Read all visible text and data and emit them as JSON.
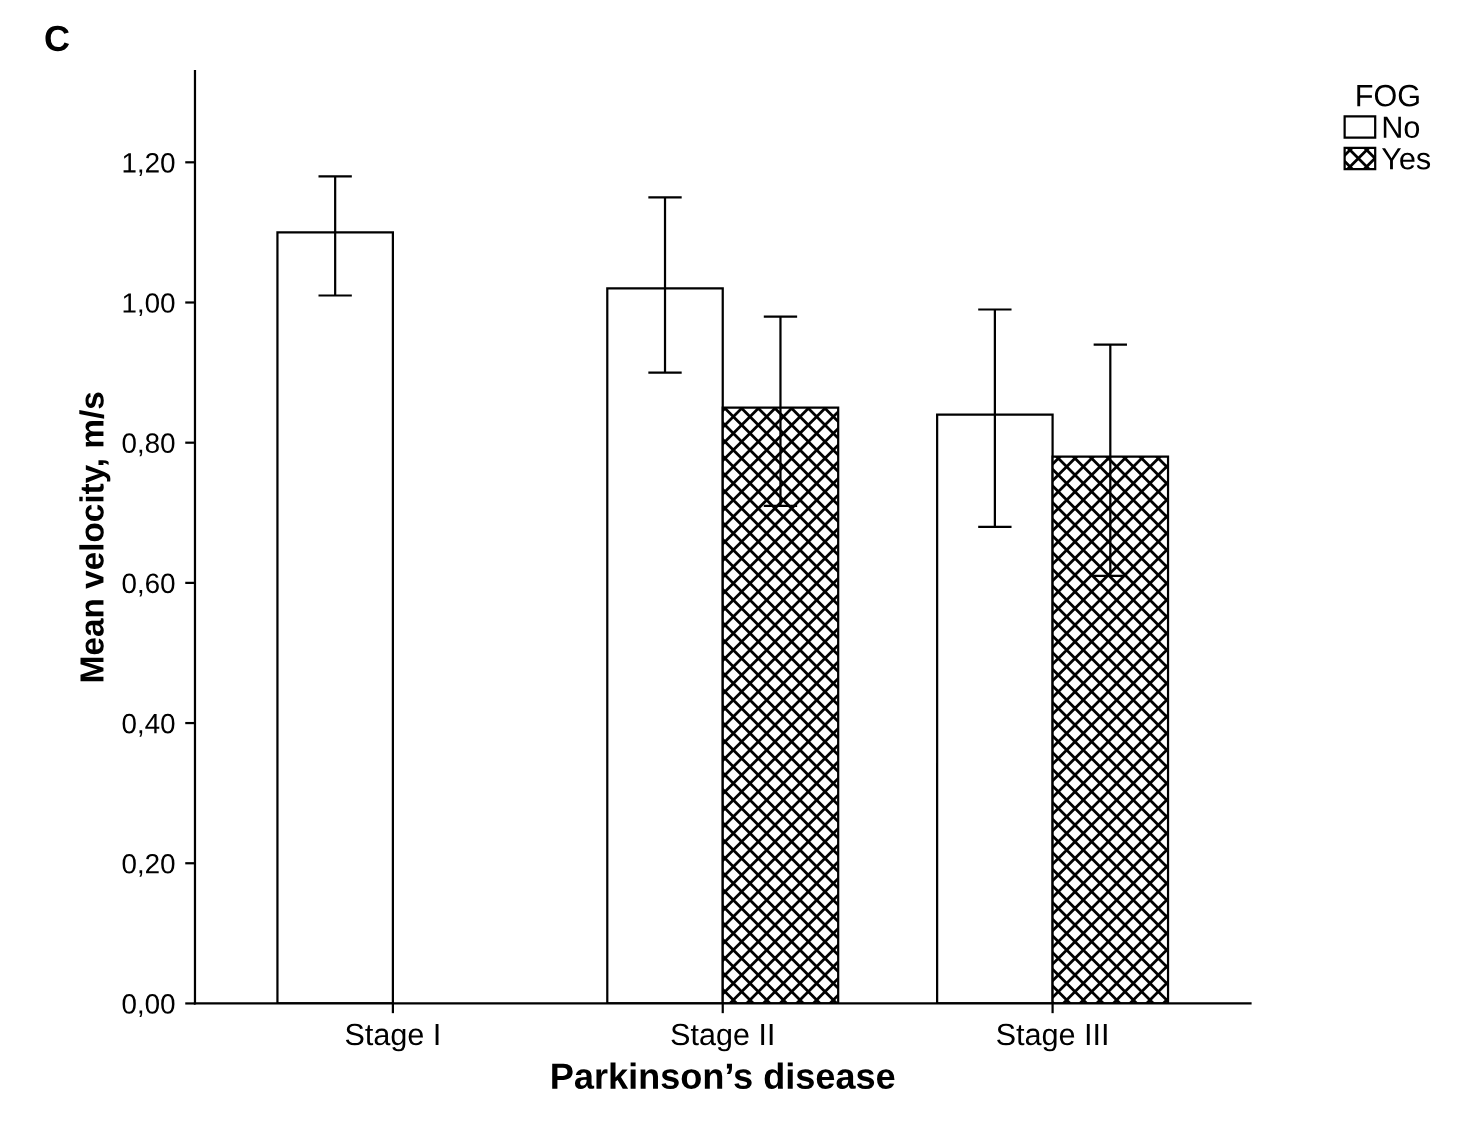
{
  "chart_data": {
    "type": "bar",
    "title": "C",
    "xlabel": "Parkinson’s disease",
    "ylabel": "Mean velocity, m/s",
    "legend_title": "FOG",
    "legend": "top right",
    "categories": [
      "Stage I",
      "Stage II",
      "Stage III"
    ],
    "series": [
      {
        "name": "No",
        "color": "#ffffff",
        "values": [
          1.1,
          1.02,
          0.84
        ],
        "errors": [
          [
            1.01,
            1.18
          ],
          [
            0.9,
            1.15
          ],
          [
            0.68,
            0.99
          ]
        ]
      },
      {
        "name": "Yes",
        "color": "#000000",
        "values": [
          null,
          0.85,
          0.78
        ],
        "errors": [
          null,
          [
            0.71,
            0.98
          ],
          [
            0.61,
            0.94
          ]
        ]
      }
    ],
    "ylim": [
      0,
      1.33
    ],
    "yticks": [
      {
        "value": 0,
        "label": "0,00"
      },
      {
        "value": 0.2,
        "label": "0,20"
      },
      {
        "value": 0.4,
        "label": "0,40"
      },
      {
        "value": 0.6,
        "label": "0,60"
      },
      {
        "value": 0.8,
        "label": "0,80"
      },
      {
        "value": 1.0,
        "label": "1,00"
      },
      {
        "value": 1.2,
        "label": "1,20"
      }
    ],
    "grid": false
  }
}
